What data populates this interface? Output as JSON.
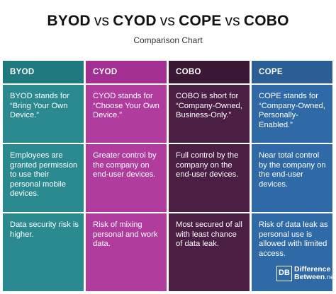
{
  "header": {
    "title_parts": [
      "BYOD",
      "vs",
      "CYOD",
      "vs",
      "COPE",
      "vs",
      "COBO"
    ],
    "subtitle": "Comparison Chart"
  },
  "colors": {
    "byod_head": "#1f7a80",
    "byod_body": "#2a8a8f",
    "cyod_head": "#a42f93",
    "cyod_body": "#b03c9e",
    "cobo_head": "#3a1735",
    "cobo_body": "#4a1f43",
    "cope_head": "#2a5e95",
    "cope_body": "#2f6aa6"
  },
  "columns": [
    {
      "header": "BYOD",
      "cells": [
        "BYOD stands for “Bring Your Own Device.”",
        "Employees are granted permission to use their personal mobile devices.",
        "Data security risk is higher."
      ]
    },
    {
      "header": "CYOD",
      "cells": [
        "CYOD stands for “Choose Your Own Device.”",
        "Greater control by the company on end-user devices.",
        "Risk of mixing personal and work data."
      ]
    },
    {
      "header": "COBO",
      "cells": [
        "COBO is short for “Company-Owned, Business-Only.”",
        "Full control by the company on the end-user devices.",
        "Most secured of all with least chance of data leak."
      ]
    },
    {
      "header": "COPE",
      "cells": [
        "COPE stands for “Company-Owned, Personally-Enabled.”",
        "Near total control by the company on the end-user devices.",
        "Risk of data leak as personal use is allowed with limited access."
      ]
    }
  ],
  "logo": {
    "mark": "DB",
    "line1": "Difference",
    "line2": "Between",
    "line3": ".net"
  }
}
